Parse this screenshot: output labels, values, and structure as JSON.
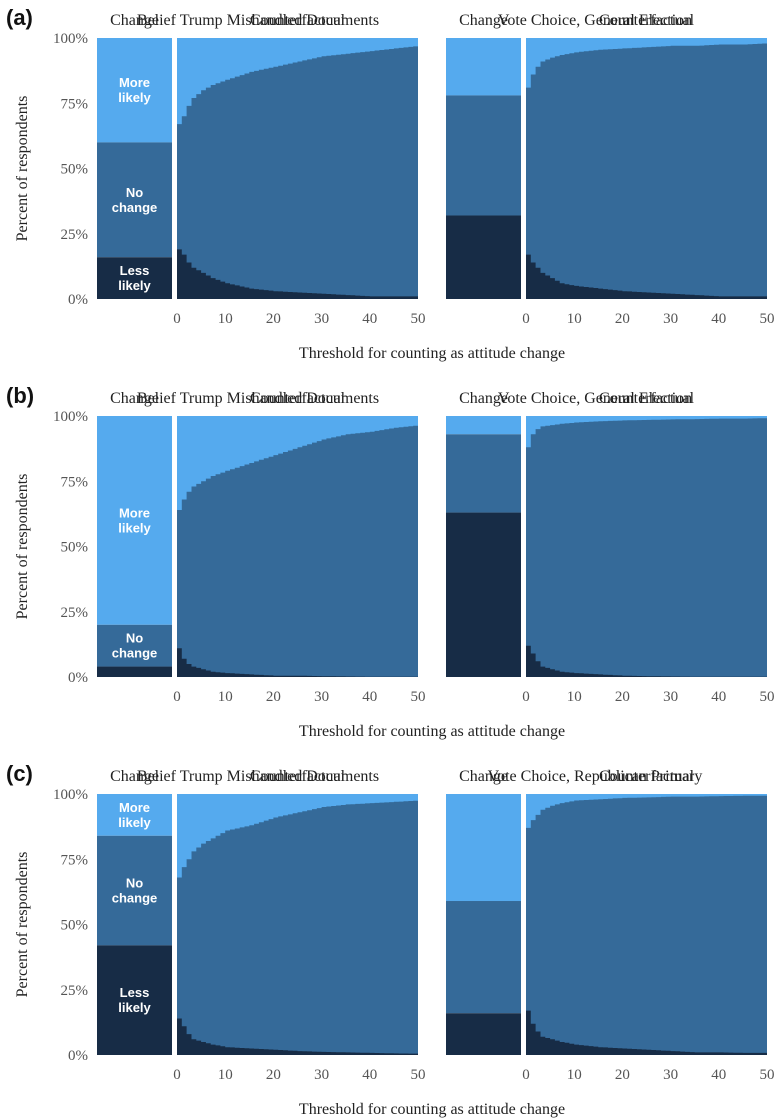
{
  "colors": {
    "more_likely": "#55aaee",
    "no_change": "#356a99",
    "less_likely": "#172c46",
    "divider": "#ffffff"
  },
  "chart_data": [
    {
      "type": "area",
      "panel": "(a)",
      "ylabel": "Percent of respondents",
      "xlabel": "Threshold for counting as attitude change",
      "yticks": [
        "0%",
        "25%",
        "50%",
        "75%",
        "100%"
      ],
      "xticks": [
        "0",
        "10",
        "20",
        "30",
        "40",
        "50"
      ],
      "facets": [
        {
          "title": "Belief Trump Mishandled Documents",
          "change_label": "Change",
          "counterfactual_label": "Counterfactual",
          "change": {
            "less_likely": 16,
            "no_change": 44,
            "more_likely": 40
          },
          "segment_labels": {
            "more_likely": [
              "More",
              "likely"
            ],
            "no_change": [
              "No",
              "change"
            ],
            "less_likely": [
              "Less",
              "likely"
            ]
          },
          "counterfactual": {
            "threshold": [
              0,
              1,
              2,
              3,
              5,
              7,
              10,
              15,
              20,
              25,
              30,
              35,
              40,
              45,
              50
            ],
            "less_likely": [
              19,
              17,
              14,
              12,
              10,
              8,
              6,
              4,
              3,
              2.5,
              2,
              1.5,
              1,
              1,
              1
            ],
            "upper": [
              67,
              70,
              74,
              77,
              80,
              82,
              84,
              87,
              89,
              91,
              93,
              94,
              95,
              96,
              97
            ]
          }
        },
        {
          "title": "Vote Choice, General Election",
          "change_label": "Change",
          "counterfactual_label": "Counterfactual",
          "change": {
            "less_likely": 32,
            "no_change": 46,
            "more_likely": 22
          },
          "segment_labels": {},
          "counterfactual": {
            "threshold": [
              0,
              1,
              2,
              3,
              5,
              7,
              10,
              15,
              20,
              25,
              30,
              35,
              40,
              45,
              50
            ],
            "less_likely": [
              17,
              14,
              12,
              10,
              8,
              6,
              5,
              4,
              3,
              2.5,
              2,
              1.5,
              1,
              1,
              1
            ],
            "upper": [
              81,
              86,
              89,
              91,
              92.5,
              93.5,
              94.5,
              95.5,
              96,
              96.5,
              97,
              97,
              97.5,
              97.5,
              98
            ]
          }
        }
      ]
    },
    {
      "type": "area",
      "panel": "(b)",
      "ylabel": "Percent of respondents",
      "xlabel": "Threshold for counting as attitude change",
      "yticks": [
        "0%",
        "25%",
        "50%",
        "75%",
        "100%"
      ],
      "xticks": [
        "0",
        "10",
        "20",
        "30",
        "40",
        "50"
      ],
      "facets": [
        {
          "title": "Belief Trump Mishandled Documents",
          "change_label": "Change",
          "counterfactual_label": "Counterfactual",
          "change": {
            "less_likely": 4,
            "no_change": 16,
            "more_likely": 80
          },
          "segment_labels": {
            "more_likely": [
              "More",
              "likely"
            ],
            "no_change": [
              "No",
              "change"
            ]
          },
          "counterfactual": {
            "threshold": [
              0,
              1,
              2,
              3,
              5,
              7,
              10,
              15,
              20,
              25,
              30,
              35,
              40,
              45,
              50
            ],
            "less_likely": [
              11,
              7,
              5,
              4,
              3,
              2,
              1.5,
              1,
              0.5,
              0.5,
              0.3,
              0.2,
              0.1,
              0.1,
              0.1
            ],
            "upper": [
              64,
              68,
              71,
              73,
              75,
              77,
              79,
              82,
              85,
              88,
              91,
              93,
              94,
              95.5,
              96.5
            ]
          }
        },
        {
          "title": "Vote Choice, General Election",
          "change_label": "Change",
          "counterfactual_label": "Counterfactual",
          "change": {
            "less_likely": 63,
            "no_change": 30,
            "more_likely": 7
          },
          "segment_labels": {},
          "counterfactual": {
            "threshold": [
              0,
              1,
              2,
              3,
              5,
              7,
              10,
              15,
              20,
              25,
              30,
              35,
              40,
              45,
              50
            ],
            "less_likely": [
              12,
              9,
              6,
              4,
              3,
              2,
              1.5,
              1,
              0.5,
              0.3,
              0.2,
              0.1,
              0.1,
              0.1,
              0.1
            ],
            "upper": [
              88,
              93,
              95,
              96,
              96.5,
              97,
              97.5,
              98,
              98.3,
              98.5,
              98.7,
              98.8,
              99,
              99,
              99.2
            ]
          }
        }
      ]
    },
    {
      "type": "area",
      "panel": "(c)",
      "ylabel": "Percent of respondents",
      "xlabel": "Threshold for counting as attitude change",
      "yticks": [
        "0%",
        "25%",
        "50%",
        "75%",
        "100%"
      ],
      "xticks": [
        "0",
        "10",
        "20",
        "30",
        "40",
        "50"
      ],
      "facets": [
        {
          "title": "Belief Trump Mishandled Documents",
          "change_label": "Change",
          "counterfactual_label": "Counterfactual",
          "change": {
            "less_likely": 42,
            "no_change": 42,
            "more_likely": 16
          },
          "segment_labels": {
            "more_likely": [
              "More",
              "likely"
            ],
            "no_change": [
              "No",
              "change"
            ],
            "less_likely": [
              "Less",
              "likely"
            ]
          },
          "counterfactual": {
            "threshold": [
              0,
              1,
              2,
              3,
              5,
              7,
              10,
              15,
              20,
              25,
              30,
              35,
              40,
              45,
              50
            ],
            "less_likely": [
              14,
              11,
              8,
              6,
              5,
              4,
              3,
              2.5,
              2,
              1.5,
              1.2,
              1,
              0.8,
              0.6,
              0.5
            ],
            "upper": [
              68,
              72,
              75,
              78,
              81,
              83,
              86,
              88,
              91,
              93,
              95,
              96,
              96.5,
              97,
              97.5
            ]
          }
        },
        {
          "title": "Vote Choice, Republican Primary",
          "change_label": "Change",
          "counterfactual_label": "Counterfactual",
          "change": {
            "less_likely": 16,
            "no_change": 43,
            "more_likely": 41
          },
          "segment_labels": {},
          "counterfactual": {
            "threshold": [
              0,
              1,
              2,
              3,
              5,
              7,
              10,
              15,
              20,
              25,
              30,
              35,
              40,
              45,
              50
            ],
            "less_likely": [
              17,
              12,
              9,
              7,
              6,
              5,
              4,
              3,
              2.5,
              2,
              1.5,
              1,
              1,
              0.8,
              0.8
            ],
            "upper": [
              87,
              90,
              92,
              94,
              95.5,
              96.5,
              97.5,
              98,
              98.5,
              98.7,
              99,
              99,
              99.2,
              99.3,
              99.3
            ]
          }
        }
      ]
    }
  ]
}
